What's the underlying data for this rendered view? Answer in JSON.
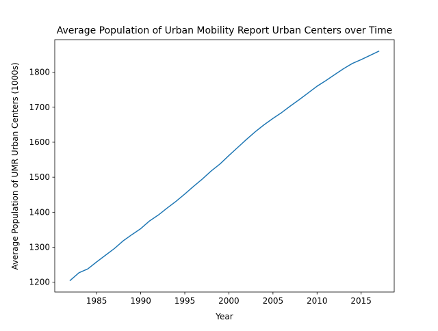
{
  "chart_data": {
    "type": "line",
    "title": "Average Population of Urban Mobility Report Urban Centers over Time",
    "xlabel": "Year",
    "ylabel": "Average Population of UMR Urban Centers (1000s)",
    "xlim": [
      1980.25,
      2018.75
    ],
    "ylim": [
      1172,
      1893
    ],
    "xticks": [
      1985,
      1990,
      1995,
      2000,
      2005,
      2010,
      2015
    ],
    "yticks": [
      1200,
      1300,
      1400,
      1500,
      1600,
      1700,
      1800
    ],
    "grid": false,
    "legend": "none",
    "series": [
      {
        "color": "#1f77b4",
        "x": [
          1982,
          1983,
          1984,
          1985,
          1986,
          1987,
          1988,
          1989,
          1990,
          1991,
          1992,
          1993,
          1994,
          1995,
          1996,
          1997,
          1998,
          1999,
          2000,
          2001,
          2002,
          2003,
          2004,
          2005,
          2006,
          2007,
          2008,
          2009,
          2010,
          2011,
          2012,
          2013,
          2014,
          2015,
          2016,
          2017
        ],
        "values": [
          1205,
          1227,
          1238,
          1258,
          1277,
          1296,
          1318,
          1336,
          1353,
          1375,
          1392,
          1412,
          1431,
          1452,
          1474,
          1495,
          1518,
          1538,
          1562,
          1585,
          1608,
          1630,
          1650,
          1668,
          1685,
          1704,
          1722,
          1741,
          1760,
          1776,
          1793,
          1810,
          1825,
          1836,
          1848,
          1860
        ]
      }
    ]
  }
}
